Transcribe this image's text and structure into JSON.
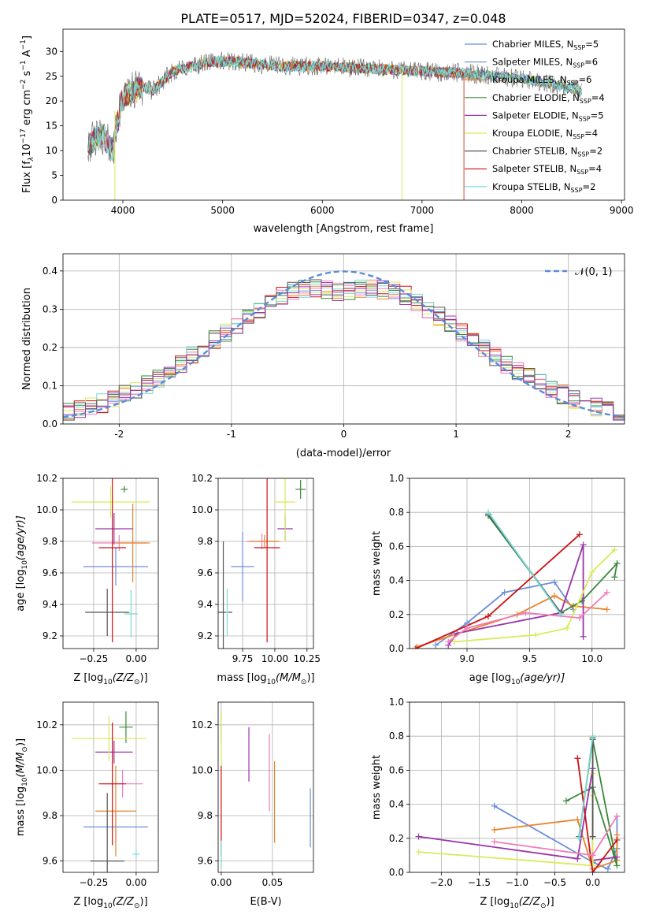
{
  "figure": {
    "title": "PLATE=0517, MJD=52024, FIBERID=0347, z=0.048",
    "colors": [
      "#6a8fdb",
      "#e8832a",
      "#3a8a3a",
      "#8b2a8b",
      "#d9ea5a",
      "#555555",
      "#cc1111",
      "#f07cba",
      "#7ad7d7"
    ],
    "model_colors": [
      "#6a8fdb",
      "#7a9ad0",
      "#e8832a",
      "#3a8a3a",
      "#9933aa",
      "#d9ea5a",
      "#555555",
      "#cc1111",
      "#7ad7d7"
    ]
  },
  "chart_data": [
    {
      "id": "spectrum",
      "type": "line",
      "xlabel": "wavelength [Angstrom, rest frame]",
      "ylabel": "Flux [f",
      "ylabel_lambda": "λ",
      "ylabel_mid": "10",
      "ylabel_exp1": "−17",
      "ylabel_unit": " erg cm",
      "ylabel_exp2": "−2",
      "ylabel_unit2": " s",
      "ylabel_exp3": "−1",
      "ylabel_unit3": " A",
      "ylabel_exp4": "−1",
      "ylabel_close": "]",
      "xlim": [
        3400,
        9030
      ],
      "ylim": [
        0,
        34.5
      ],
      "xticks": [
        4000,
        5000,
        6000,
        7000,
        8000,
        9000
      ],
      "yticks": [
        0,
        5,
        10,
        15,
        20,
        25,
        30
      ],
      "legend_position": "top-right",
      "legend": [
        {
          "name": "Chabrier MILES, N",
          "sub": "SSP",
          "suffix": "=5"
        },
        {
          "name": "Salpeter MILES, N",
          "sub": "SSP",
          "suffix": "=6"
        },
        {
          "name": "Kroupa MILES, N",
          "sub": "SSP",
          "suffix": "=6"
        },
        {
          "name": "Chabrier ELODIE, N",
          "sub": "SSP",
          "suffix": "=4"
        },
        {
          "name": "Salpeter ELODIE, N",
          "sub": "SSP",
          "suffix": "=5"
        },
        {
          "name": "Kroupa ELODIE, N",
          "sub": "SSP",
          "suffix": "=4"
        },
        {
          "name": "Chabrier STELIB, N",
          "sub": "SSP",
          "suffix": "=2"
        },
        {
          "name": "Salpeter STELIB, N",
          "sub": "SSP",
          "suffix": "=4"
        },
        {
          "name": "Kroupa STELIB, N",
          "sub": "SSP",
          "suffix": "=2"
        }
      ],
      "continuum": [
        [
          3650,
          11
        ],
        [
          3700,
          12
        ],
        [
          3800,
          13
        ],
        [
          3900,
          10
        ],
        [
          3950,
          16
        ],
        [
          4000,
          21
        ],
        [
          4100,
          22
        ],
        [
          4200,
          23
        ],
        [
          4300,
          22
        ],
        [
          4400,
          24
        ],
        [
          4500,
          26
        ],
        [
          4700,
          27
        ],
        [
          4900,
          28
        ],
        [
          5100,
          28
        ],
        [
          5300,
          27.5
        ],
        [
          5600,
          27
        ],
        [
          6000,
          27
        ],
        [
          6500,
          26.5
        ],
        [
          7000,
          26
        ],
        [
          7500,
          25.5
        ],
        [
          8000,
          24.5
        ],
        [
          8300,
          23.5
        ],
        [
          8600,
          22
        ]
      ]
    },
    {
      "id": "residuals",
      "type": "histogram",
      "xlabel": "(data-model)/error",
      "ylabel": "Normed distribution",
      "xlim": [
        -2.5,
        2.5
      ],
      "ylim": [
        0,
        0.445
      ],
      "xticks": [
        -2,
        -1,
        0,
        1,
        2
      ],
      "yticks": [
        0.0,
        0.1,
        0.2,
        0.3,
        0.4
      ],
      "bin_width": 0.1,
      "legend_position": "top-right",
      "legend_label": "𝒩(0, 1)"
    },
    {
      "id": "age-vs-Z",
      "type": "scatter",
      "xlabel": "Z [log",
      "xlabel_sub": "10",
      "xlabel_rest": "(Z/Z",
      "xlabel_sun": "⊙",
      "xlabel_close": ")]",
      "ylabel": "age  [log",
      "ylabel_sub": "10",
      "ylabel_rest": "(age/yr)]",
      "xlim": [
        -0.43,
        0.13
      ],
      "ylim": [
        9.12,
        10.2
      ],
      "xticks": [
        -0.25,
        0.0
      ],
      "xticklabels": [
        "−0.25",
        "0.00"
      ],
      "yticks": [
        9.2,
        9.4,
        9.6,
        9.8,
        10.0,
        10.2
      ],
      "points": [
        {
          "x": -0.12,
          "y": 9.64,
          "xerr": 0.19,
          "yerr": 0.12,
          "color": "#6a8fdb"
        },
        {
          "x": -0.1,
          "y": 9.79,
          "xerr": 0.16,
          "yerr": 0.05,
          "color": "#f07cba"
        },
        {
          "x": -0.02,
          "y": 9.79,
          "xerr": 0.1,
          "yerr": 0.25,
          "color": "#e8832a"
        },
        {
          "x": -0.07,
          "y": 10.13,
          "xerr": 0.02,
          "yerr": 0.02,
          "color": "#3a8a3a"
        },
        {
          "x": -0.13,
          "y": 9.88,
          "xerr": 0.11,
          "yerr": 0.1,
          "color": "#9933aa"
        },
        {
          "x": -0.15,
          "y": 10.05,
          "xerr": 0.23,
          "yerr": 0.1,
          "color": "#d9ea5a"
        },
        {
          "x": -0.17,
          "y": 9.35,
          "xerr": 0.13,
          "yerr": 0.15,
          "color": "#555555"
        },
        {
          "x": -0.14,
          "y": 9.76,
          "xerr": 0.08,
          "yerr": 0.6,
          "color": "#cc1111"
        },
        {
          "x": -0.03,
          "y": 9.34,
          "xerr": 0.04,
          "yerr": 0.15,
          "color": "#7ad7d7"
        }
      ]
    },
    {
      "id": "age-vs-mass",
      "type": "scatter",
      "xlabel": "mass [log",
      "xlabel_sub": "10",
      "xlabel_rest": "(M/M",
      "xlabel_sun": "⊙",
      "xlabel_close": ")]",
      "xlim": [
        9.56,
        10.3
      ],
      "ylim": [
        9.12,
        10.2
      ],
      "xticks": [
        9.75,
        10.0,
        10.25
      ],
      "xticklabels": [
        "9.75",
        "10.00",
        "10.25"
      ],
      "yticks": [
        9.2,
        9.4,
        9.6,
        9.8,
        10.0,
        10.2
      ],
      "points": [
        {
          "x": 9.75,
          "y": 9.64,
          "xerr": 0.09,
          "yerr": 0.22,
          "color": "#6a8fdb"
        },
        {
          "x": 9.9,
          "y": 9.8,
          "xerr": 0.12,
          "yerr": 0.05,
          "color": "#f07cba"
        },
        {
          "x": 9.92,
          "y": 9.8,
          "xerr": 0.12,
          "yerr": 0.04,
          "color": "#e8832a"
        },
        {
          "x": 10.2,
          "y": 10.13,
          "xerr": 0.04,
          "yerr": 0.06,
          "color": "#3a8a3a"
        },
        {
          "x": 10.08,
          "y": 9.88,
          "xerr": 0.06,
          "yerr": 0.08,
          "color": "#9933aa"
        },
        {
          "x": 10.08,
          "y": 10.05,
          "xerr": 0.08,
          "yerr": 0.25,
          "color": "#d9ea5a"
        },
        {
          "x": 9.6,
          "y": 9.35,
          "xerr": 0.07,
          "yerr": 0.45,
          "color": "#555555"
        },
        {
          "x": 9.94,
          "y": 9.76,
          "xerr": 0.1,
          "yerr": 0.6,
          "color": "#cc1111"
        },
        {
          "x": 9.63,
          "y": 9.35,
          "xerr": 0.01,
          "yerr": 0.15,
          "color": "#7ad7d7"
        }
      ]
    },
    {
      "id": "weight-vs-age",
      "type": "line",
      "xlabel": "age  [log",
      "xlabel_sub": "10",
      "xlabel_rest": "(age/yr)]",
      "ylabel": "mass weight",
      "xlim": [
        8.54,
        10.26
      ],
      "ylim": [
        0,
        1.0
      ],
      "xticks": [
        9.0,
        9.5,
        10.0
      ],
      "xticklabels": [
        "9.0",
        "9.5",
        "10.0"
      ],
      "yticks": [
        0.0,
        0.2,
        0.4,
        0.6,
        0.8,
        1.0
      ],
      "series": [
        {
          "color": "#6a8fdb",
          "x": [
            8.75,
            9.0,
            9.3,
            9.7,
            9.85
          ],
          "y": [
            0.02,
            0.15,
            0.33,
            0.39,
            0.23
          ]
        },
        {
          "color": "#e8832a",
          "x": [
            8.6,
            9.4,
            9.7,
            9.85,
            10.12
          ],
          "y": [
            0.01,
            0.2,
            0.31,
            0.25,
            0.23
          ]
        },
        {
          "color": "#3a8a3a",
          "x": [
            9.17,
            9.75,
            9.92,
            10.2,
            10.18
          ],
          "y": [
            0.78,
            0.21,
            0.28,
            0.5,
            0.42
          ]
        },
        {
          "color": "#9933aa",
          "x": [
            8.85,
            8.92,
            9.75,
            9.93,
            9.93
          ],
          "y": [
            0.02,
            0.09,
            0.21,
            0.61,
            0.07
          ]
        },
        {
          "color": "#d9ea5a",
          "x": [
            8.9,
            9.55,
            9.8,
            10.0,
            10.18
          ],
          "y": [
            0.04,
            0.08,
            0.12,
            0.45,
            0.58
          ]
        },
        {
          "color": "#555555",
          "x": [
            9.17,
            9.75
          ],
          "y": [
            0.79,
            0.21
          ]
        },
        {
          "color": "#cc1111",
          "x": [
            8.59,
            9.17,
            9.9
          ],
          "y": [
            0.0,
            0.19,
            0.67
          ]
        },
        {
          "color": "#f07cba",
          "x": [
            8.85,
            9.0,
            9.47,
            9.9,
            10.12
          ],
          "y": [
            0.04,
            0.12,
            0.21,
            0.18,
            0.33
          ]
        },
        {
          "color": "#7ad7d7",
          "x": [
            9.17,
            9.75
          ],
          "y": [
            0.8,
            0.2
          ]
        }
      ]
    },
    {
      "id": "mass-vs-Z",
      "type": "scatter",
      "xlabel": "Z [log",
      "xlabel_sub": "10",
      "xlabel_rest": "(Z/Z",
      "xlabel_sun": "⊙",
      "xlabel_close": ")]",
      "ylabel": "mass [log",
      "ylabel_sub": "10",
      "ylabel_rest": "(M/M",
      "ylabel_sun": "⊙",
      "ylabel_close": ")]",
      "xlim": [
        -0.43,
        0.13
      ],
      "ylim": [
        9.55,
        10.3
      ],
      "xticks": [
        -0.25,
        0.0
      ],
      "xticklabels": [
        "−0.25",
        "0.00"
      ],
      "yticks": [
        9.6,
        9.8,
        10.0,
        10.2
      ],
      "points": [
        {
          "x": -0.12,
          "y": 9.75,
          "xerr": 0.19,
          "yerr": 0.07,
          "color": "#6a8fdb"
        },
        {
          "x": -0.08,
          "y": 9.94,
          "xerr": 0.12,
          "yerr": 0.06,
          "color": "#f07cba"
        },
        {
          "x": -0.12,
          "y": 9.82,
          "xerr": 0.12,
          "yerr": 0.2,
          "color": "#e8832a"
        },
        {
          "x": -0.06,
          "y": 10.19,
          "xerr": 0.04,
          "yerr": 0.07,
          "color": "#3a8a3a"
        },
        {
          "x": -0.13,
          "y": 10.08,
          "xerr": 0.11,
          "yerr": 0.05,
          "color": "#9933aa"
        },
        {
          "x": -0.16,
          "y": 10.14,
          "xerr": 0.22,
          "yerr": 0.1,
          "color": "#d9ea5a"
        },
        {
          "x": -0.17,
          "y": 9.6,
          "xerr": 0.1,
          "yerr": 0.3,
          "color": "#555555"
        },
        {
          "x": -0.14,
          "y": 9.94,
          "xerr": 0.08,
          "yerr": 0.27,
          "color": "#cc1111"
        },
        {
          "x": 0.0,
          "y": 9.63,
          "xerr": 0.02,
          "yerr": 0.02,
          "color": "#7ad7d7"
        }
      ]
    },
    {
      "id": "mass-vs-ebv",
      "type": "scatter",
      "xlabel": "E(B-V)",
      "xlim": [
        -0.003,
        0.09
      ],
      "ylim": [
        9.55,
        10.3
      ],
      "xticks": [
        0.0,
        0.05
      ],
      "xticklabels": [
        "0.00",
        "0.05"
      ],
      "yticks": [
        9.6,
        9.8,
        10.0,
        10.2
      ],
      "points": [
        {
          "x": 0.0,
          "y": 10.19,
          "yerr": 0.07,
          "color": "#3a8a3a"
        },
        {
          "x": 0.0,
          "y": 10.14,
          "yerr": 0.12,
          "color": "#d9ea5a"
        },
        {
          "x": 0.0,
          "y": 9.82,
          "yerr": 0.2,
          "color": "#cc1111"
        },
        {
          "x": 0.0,
          "y": 9.63,
          "yerr": 0.06,
          "color": "#7ad7d7"
        },
        {
          "x": 0.027,
          "y": 10.07,
          "yerr": 0.12,
          "color": "#9933aa"
        },
        {
          "x": 0.047,
          "y": 9.99,
          "yerr": 0.17,
          "color": "#f07cba"
        },
        {
          "x": 0.052,
          "y": 9.86,
          "yerr": 0.18,
          "color": "#e8832a"
        },
        {
          "x": 0.087,
          "y": 9.79,
          "yerr": 0.13,
          "color": "#6a8fdb"
        }
      ]
    },
    {
      "id": "weight-vs-Z",
      "type": "line",
      "xlabel": "Z [log",
      "xlabel_sub": "10",
      "xlabel_rest": "(Z/Z",
      "xlabel_sun": "⊙",
      "xlabel_close": ")]",
      "ylabel": "mass weight",
      "xlim": [
        -2.42,
        0.42
      ],
      "ylim": [
        0,
        1.0
      ],
      "xticks": [
        -2.0,
        -1.5,
        -1.0,
        -0.5,
        0.0
      ],
      "xticklabels": [
        "−2.0",
        "−1.5",
        "−1.0",
        "−0.5",
        "0.0"
      ],
      "yticks": [
        0.0,
        0.2,
        0.4,
        0.6,
        0.8,
        1.0
      ],
      "series": [
        {
          "color": "#6a8fdb",
          "x": [
            -1.3,
            0.0,
            0.2,
            0.32,
            0.32
          ],
          "y": [
            0.39,
            0.06,
            0.02,
            0.14,
            0.33
          ]
        },
        {
          "color": "#e8832a",
          "x": [
            -1.3,
            -0.2,
            0.0,
            0.32,
            0.32
          ],
          "y": [
            0.25,
            0.31,
            0.02,
            0.07,
            0.22
          ]
        },
        {
          "color": "#3a8a3a",
          "x": [
            -0.35,
            0.0,
            0.32,
            0.0,
            -0.18
          ],
          "y": [
            0.42,
            0.5,
            0.04,
            0.78,
            0.21
          ]
        },
        {
          "color": "#9933aa",
          "x": [
            -2.3,
            -0.2,
            0.0,
            0.0,
            0.32
          ],
          "y": [
            0.21,
            0.08,
            0.61,
            0.07,
            0.09
          ]
        },
        {
          "color": "#d9ea5a",
          "x": [
            -2.3,
            0.0,
            0.0,
            0.0
          ],
          "y": [
            0.12,
            0.04,
            0.45,
            0.58
          ]
        },
        {
          "color": "#555555",
          "x": [
            0.0,
            0.0
          ],
          "y": [
            0.79,
            0.21
          ]
        },
        {
          "color": "#cc1111",
          "x": [
            -0.2,
            0.0,
            0.32
          ],
          "y": [
            0.67,
            0.0,
            0.19
          ]
        },
        {
          "color": "#f07cba",
          "x": [
            -1.3,
            0.0,
            0.32
          ],
          "y": [
            0.18,
            0.1,
            0.33
          ]
        },
        {
          "color": "#7ad7d7",
          "x": [
            -0.18,
            0.0
          ],
          "y": [
            0.2,
            0.8
          ]
        }
      ]
    }
  ]
}
